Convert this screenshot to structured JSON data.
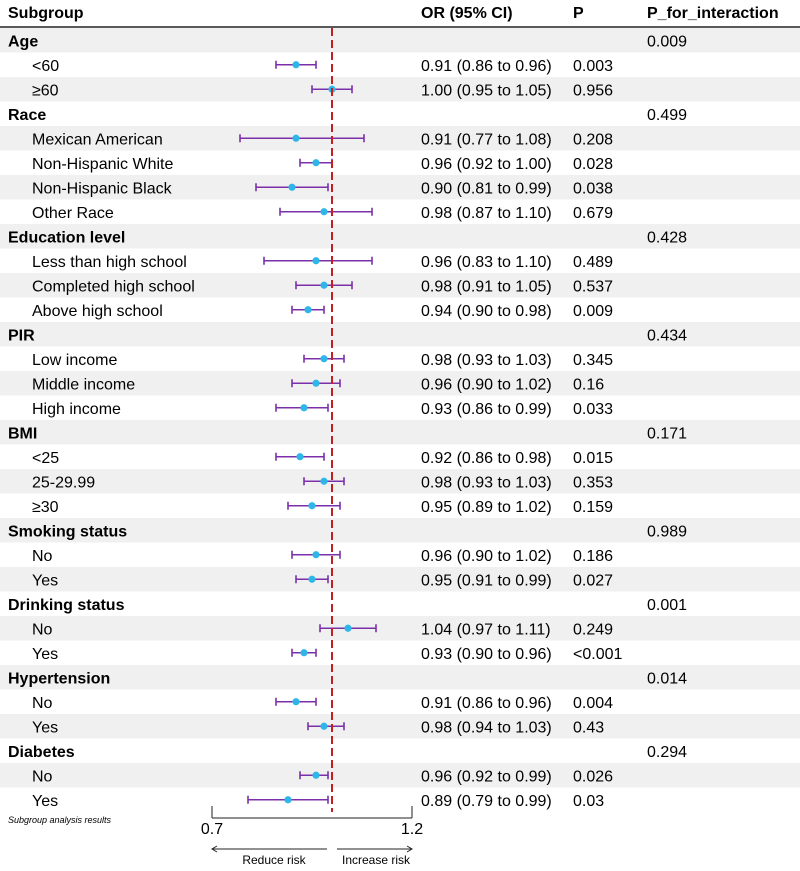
{
  "chart_data": {
    "type": "forest",
    "title": "",
    "caption": "Subgroup analysis results",
    "headers": {
      "subgroup": "Subgroup",
      "or": "OR (95% CI)",
      "p": "P",
      "p_interaction": "P_for_interaction"
    },
    "xlim": [
      0.7,
      1.2
    ],
    "reference_value": 1.0,
    "ticks": [
      "0.7",
      "1.2"
    ],
    "tick_values": [
      0.7,
      1.2
    ],
    "left_arrow_label": "Reduce risk",
    "right_arrow_label": "Increase risk",
    "colors": {
      "ci_line": "#7b2fa8",
      "point": "#2eb6e8",
      "reference_line": "#c41f1f",
      "shade": "#f0f0f0",
      "axis": "#222222"
    },
    "rows": [
      {
        "label": "Age",
        "group": true,
        "p_int": "0.009"
      },
      {
        "label": "<60",
        "or": 0.91,
        "lo": 0.86,
        "hi": 0.96,
        "or_text": "0.91 (0.86 to 0.96)",
        "p": "0.003"
      },
      {
        "label": "≥60",
        "or": 1.0,
        "lo": 0.95,
        "hi": 1.05,
        "or_text": "1.00 (0.95 to 1.05)",
        "p": "0.956"
      },
      {
        "label": "Race",
        "group": true,
        "p_int": "0.499"
      },
      {
        "label": "Mexican American",
        "or": 0.91,
        "lo": 0.77,
        "hi": 1.08,
        "or_text": "0.91 (0.77 to 1.08)",
        "p": "0.208"
      },
      {
        "label": "Non-Hispanic White",
        "or": 0.96,
        "lo": 0.92,
        "hi": 1.0,
        "or_text": "0.96 (0.92 to 1.00)",
        "p": "0.028"
      },
      {
        "label": "Non-Hispanic Black",
        "or": 0.9,
        "lo": 0.81,
        "hi": 0.99,
        "or_text": "0.90 (0.81 to 0.99)",
        "p": "0.038"
      },
      {
        "label": "Other Race",
        "or": 0.98,
        "lo": 0.87,
        "hi": 1.1,
        "or_text": "0.98 (0.87 to 1.10)",
        "p": "0.679"
      },
      {
        "label": "Education level",
        "group": true,
        "p_int": "0.428"
      },
      {
        "label": "Less than high school",
        "or": 0.96,
        "lo": 0.83,
        "hi": 1.1,
        "or_text": "0.96 (0.83 to 1.10)",
        "p": "0.489"
      },
      {
        "label": "Completed high school",
        "or": 0.98,
        "lo": 0.91,
        "hi": 1.05,
        "or_text": "0.98 (0.91 to 1.05)",
        "p": "0.537"
      },
      {
        "label": "Above high school",
        "or": 0.94,
        "lo": 0.9,
        "hi": 0.98,
        "or_text": "0.94 (0.90 to 0.98)",
        "p": "0.009"
      },
      {
        "label": "PIR",
        "group": true,
        "p_int": "0.434"
      },
      {
        "label": "Low income",
        "or": 0.98,
        "lo": 0.93,
        "hi": 1.03,
        "or_text": "0.98 (0.93 to 1.03)",
        "p": "0.345"
      },
      {
        "label": "Middle income",
        "or": 0.96,
        "lo": 0.9,
        "hi": 1.02,
        "or_text": "0.96 (0.90 to 1.02)",
        "p": "0.16"
      },
      {
        "label": "High income",
        "or": 0.93,
        "lo": 0.86,
        "hi": 0.99,
        "or_text": "0.93 (0.86 to 0.99)",
        "p": "0.033"
      },
      {
        "label": "BMI",
        "group": true,
        "p_int": "0.171"
      },
      {
        "label": "<25",
        "or": 0.92,
        "lo": 0.86,
        "hi": 0.98,
        "or_text": "0.92 (0.86 to 0.98)",
        "p": "0.015"
      },
      {
        "label": "25-29.99",
        "or": 0.98,
        "lo": 0.93,
        "hi": 1.03,
        "or_text": "0.98 (0.93 to 1.03)",
        "p": "0.353"
      },
      {
        "label": "≥30",
        "or": 0.95,
        "lo": 0.89,
        "hi": 1.02,
        "or_text": "0.95 (0.89 to 1.02)",
        "p": "0.159"
      },
      {
        "label": "Smoking status",
        "group": true,
        "p_int": "0.989"
      },
      {
        "label": "No",
        "or": 0.96,
        "lo": 0.9,
        "hi": 1.02,
        "or_text": "0.96 (0.90 to 1.02)",
        "p": "0.186"
      },
      {
        "label": "Yes",
        "or": 0.95,
        "lo": 0.91,
        "hi": 0.99,
        "or_text": "0.95 (0.91 to 0.99)",
        "p": "0.027"
      },
      {
        "label": "Drinking status",
        "group": true,
        "p_int": "0.001"
      },
      {
        "label": "No",
        "or": 1.04,
        "lo": 0.97,
        "hi": 1.11,
        "or_text": "1.04 (0.97 to 1.11)",
        "p": "0.249"
      },
      {
        "label": "Yes",
        "or": 0.93,
        "lo": 0.9,
        "hi": 0.96,
        "or_text": "0.93 (0.90 to 0.96)",
        "p": "<0.001"
      },
      {
        "label": "Hypertension",
        "group": true,
        "p_int": "0.014"
      },
      {
        "label": "No",
        "or": 0.91,
        "lo": 0.86,
        "hi": 0.96,
        "or_text": "0.91 (0.86 to 0.96)",
        "p": "0.004"
      },
      {
        "label": "Yes",
        "or": 0.98,
        "lo": 0.94,
        "hi": 1.03,
        "or_text": "0.98 (0.94 to 1.03)",
        "p": "0.43"
      },
      {
        "label": "Diabetes",
        "group": true,
        "p_int": "0.294"
      },
      {
        "label": "No",
        "or": 0.96,
        "lo": 0.92,
        "hi": 0.99,
        "or_text": "0.96 (0.92 to 0.99)",
        "p": "0.026"
      },
      {
        "label": "Yes",
        "or": 0.89,
        "lo": 0.79,
        "hi": 0.99,
        "or_text": "0.89 (0.79 to 0.99)",
        "p": "0.03"
      }
    ]
  }
}
